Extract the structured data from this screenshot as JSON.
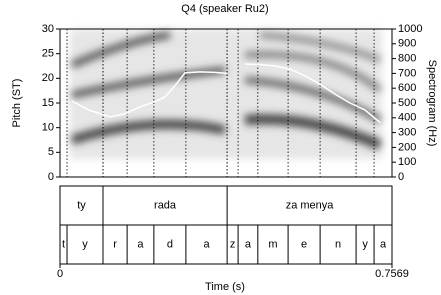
{
  "chart_data": {
    "type": "line",
    "title": "Q4 (speaker Ru2)",
    "x_label": "Time (s)",
    "y_label": "Pitch (ST)",
    "y2_label": "Spectrogram (Hz)",
    "xlim": [
      0,
      0.7569
    ],
    "xticks": [
      0,
      0.7569
    ],
    "ylim": [
      0,
      30
    ],
    "yticks": [
      0,
      5,
      10,
      15,
      20,
      25,
      30
    ],
    "y2lim": [
      0,
      1000
    ],
    "y2ticks": [
      0,
      100,
      200,
      300,
      400,
      500,
      600,
      700,
      800,
      900,
      1000
    ],
    "series": [
      {
        "color": "#ffffff",
        "x": [
          0.027,
          0.068,
          0.114,
          0.148,
          0.182,
          0.217,
          0.239,
          0.262,
          0.285,
          0.319,
          0.353,
          0.381,
          0.4,
          0.422,
          0.456,
          0.49,
          0.524,
          0.559,
          0.593,
          0.627,
          0.661,
          0.695,
          0.73
        ],
        "values": [
          15.4,
          13.5,
          12.2,
          12.8,
          14.2,
          15.3,
          16.2,
          18.5,
          21.1,
          21.3,
          21.2,
          21.0,
          null,
          22.9,
          22.8,
          22.5,
          21.9,
          20.5,
          18.8,
          16.8,
          15.0,
          13.6,
          11.0
        ]
      }
    ],
    "tiers": [
      {
        "intervals": [
          {
            "label": "ty",
            "xmin": 0,
            "xmax": 0.098
          },
          {
            "label": "rada",
            "xmin": 0.098,
            "xmax": 0.381
          },
          {
            "label": "za menya",
            "xmin": 0.381,
            "xmax": 0.7569
          }
        ]
      },
      {
        "intervals": [
          {
            "label": "t",
            "xmin": 0,
            "xmax": 0.016
          },
          {
            "label": "y",
            "xmin": 0.016,
            "xmax": 0.098
          },
          {
            "label": "r",
            "xmin": 0.098,
            "xmax": 0.153
          },
          {
            "label": "a",
            "xmin": 0.153,
            "xmax": 0.214
          },
          {
            "label": "d",
            "xmin": 0.214,
            "xmax": 0.287
          },
          {
            "label": "a",
            "xmin": 0.287,
            "xmax": 0.381
          },
          {
            "label": "z",
            "xmin": 0.381,
            "xmax": 0.406
          },
          {
            "label": "a",
            "xmin": 0.406,
            "xmax": 0.451
          },
          {
            "label": "m",
            "xmin": 0.451,
            "xmax": 0.52
          },
          {
            "label": "e",
            "xmin": 0.52,
            "xmax": 0.593
          },
          {
            "label": "n",
            "xmin": 0.593,
            "xmax": 0.675
          },
          {
            "label": "y",
            "xmin": 0.675,
            "xmax": 0.716
          },
          {
            "label": "a",
            "xmin": 0.716,
            "xmax": 0.7569
          }
        ]
      }
    ]
  }
}
